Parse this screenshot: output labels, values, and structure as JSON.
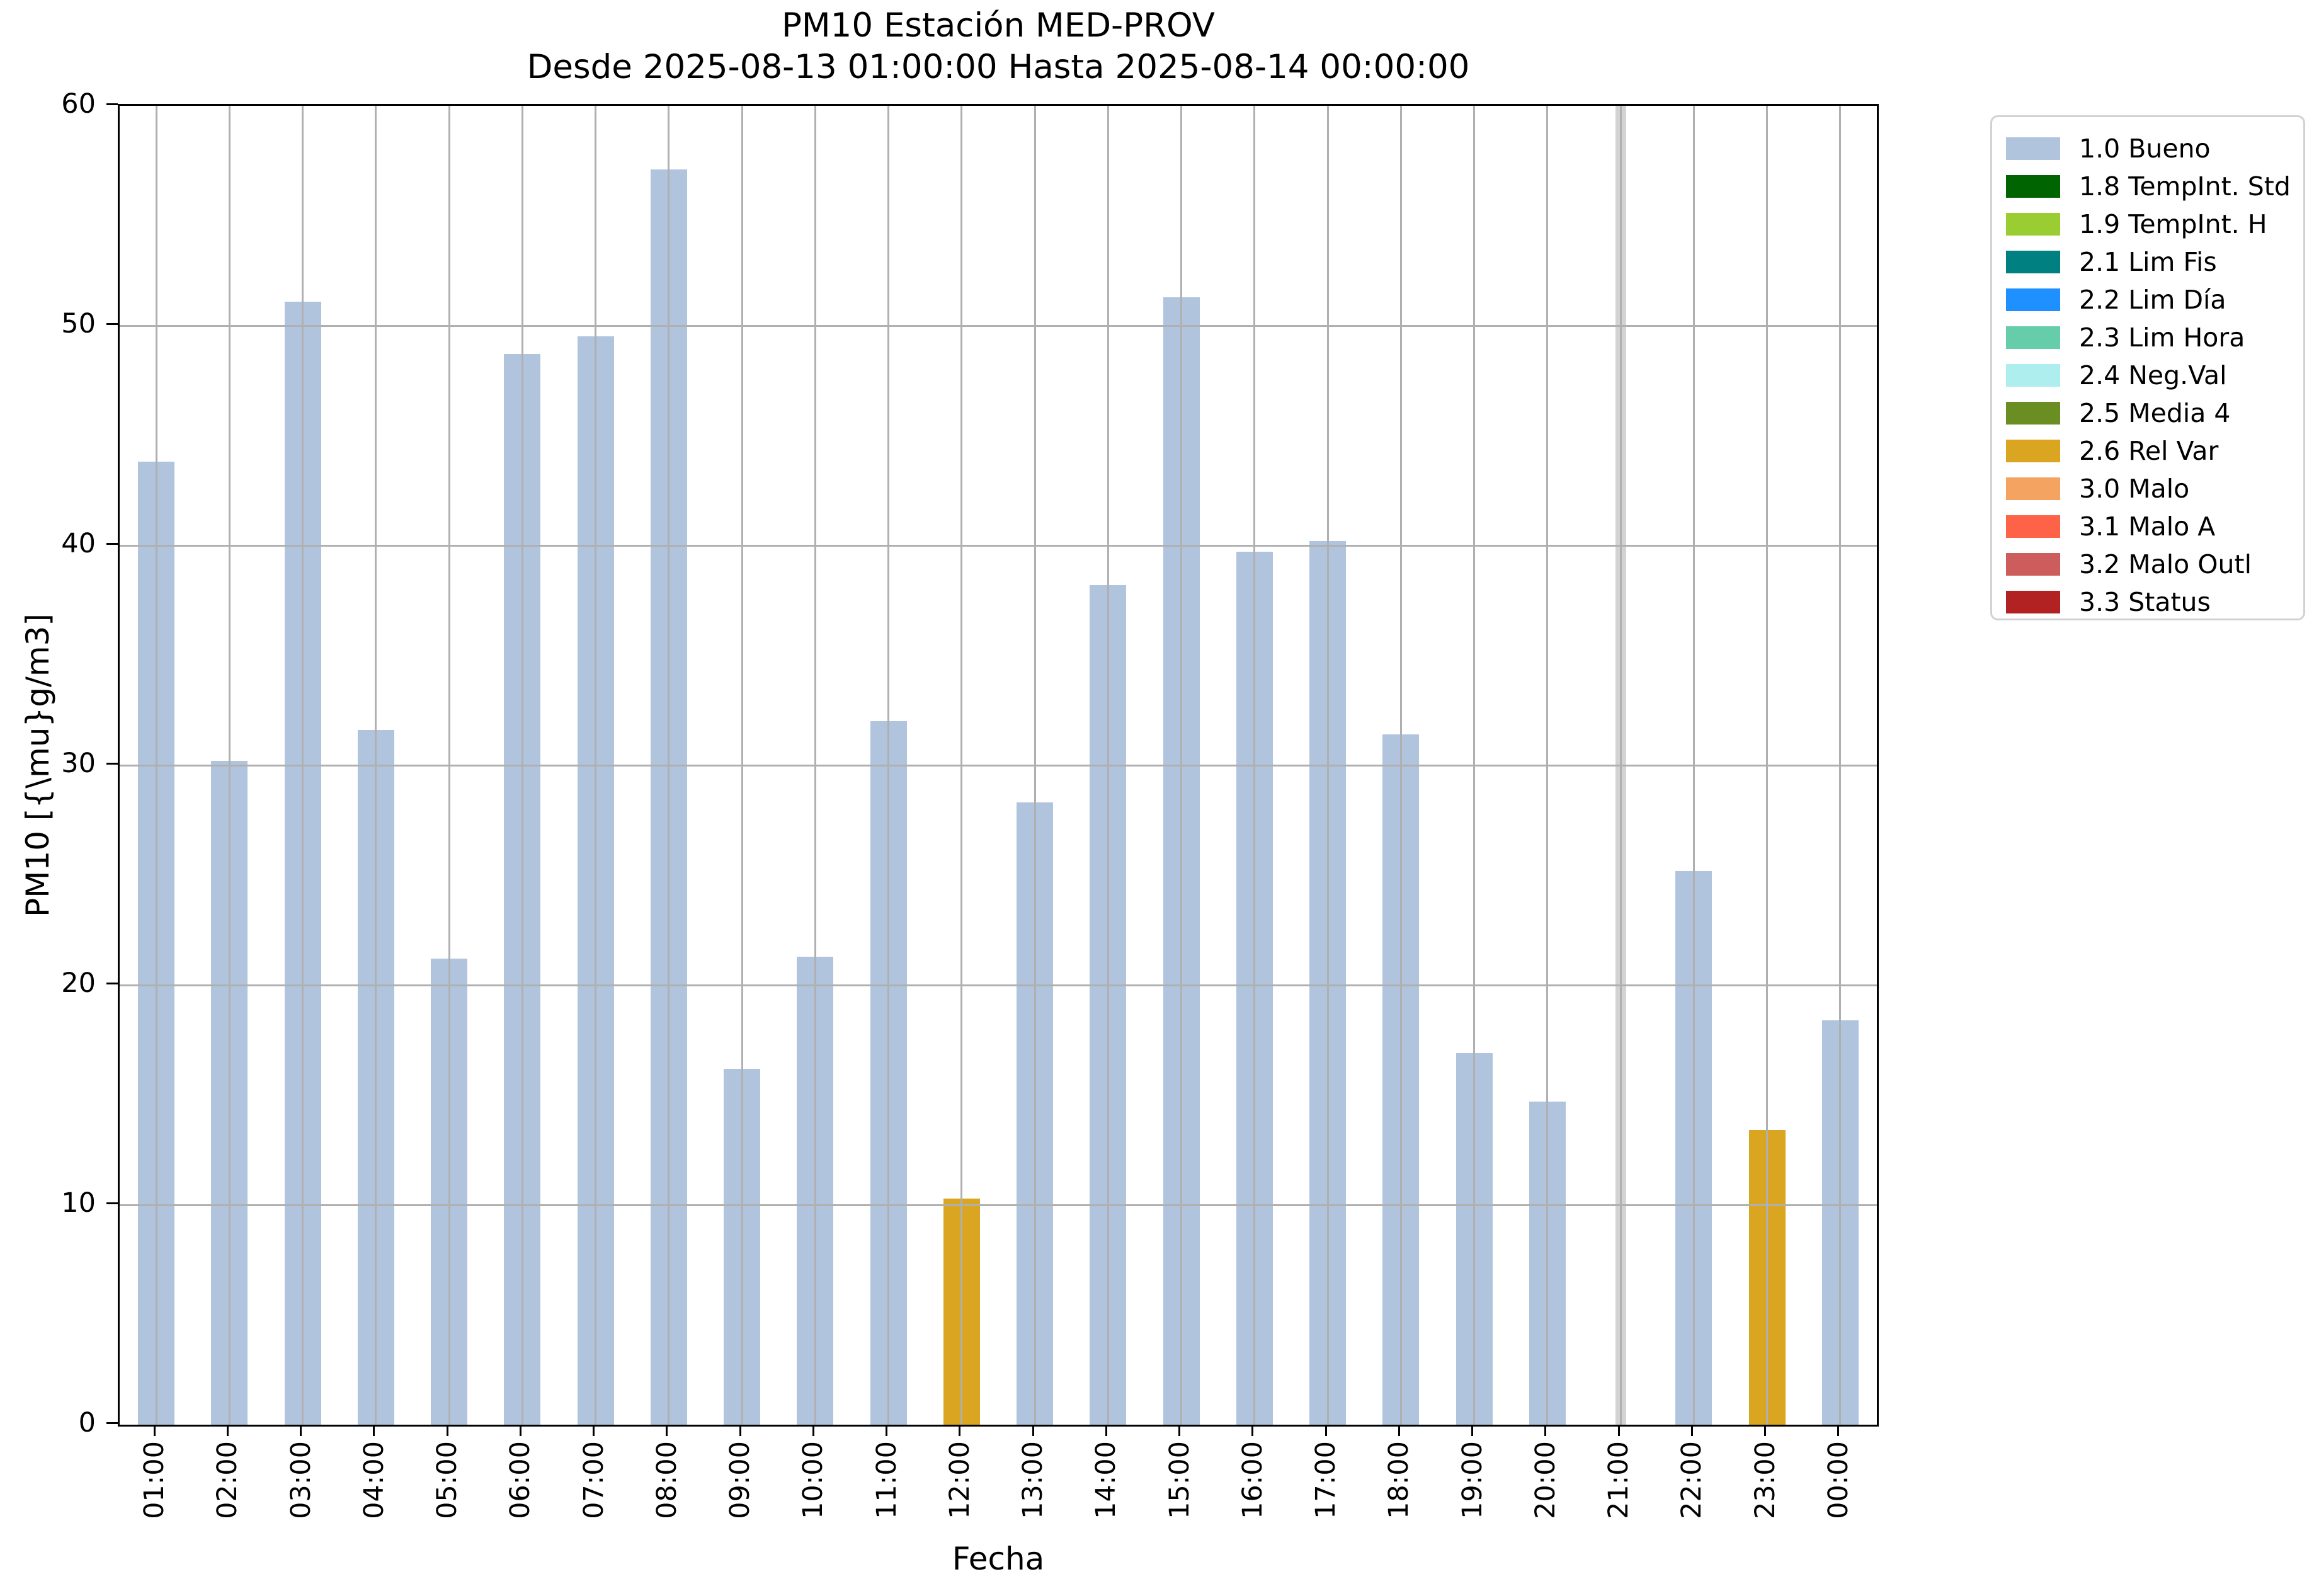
{
  "chart_data": {
    "type": "bar",
    "title": "PM10 Estación MED-PROV",
    "subtitle": "Desde 2025-08-13 01:00:00 Hasta 2025-08-14 00:00:00",
    "xlabel": "Fecha",
    "ylabel": "PM10 [{\\mu}g/m3]",
    "ylim": [
      0,
      60
    ],
    "yticks": [
      0,
      10,
      20,
      30,
      40,
      50,
      60
    ],
    "grid": true,
    "legend_position": "outside upper right",
    "categories": [
      "01:00",
      "02:00",
      "03:00",
      "04:00",
      "05:00",
      "06:00",
      "07:00",
      "08:00",
      "09:00",
      "10:00",
      "11:00",
      "12:00",
      "13:00",
      "14:00",
      "15:00",
      "16:00",
      "17:00",
      "18:00",
      "19:00",
      "20:00",
      "21:00",
      "22:00",
      "23:00",
      "00:00"
    ],
    "bars": [
      {
        "label": "01:00",
        "value": 43.8,
        "status": "1.0 Bueno"
      },
      {
        "label": "02:00",
        "value": 30.2,
        "status": "1.0 Bueno"
      },
      {
        "label": "03:00",
        "value": 51.1,
        "status": "1.0 Bueno"
      },
      {
        "label": "04:00",
        "value": 31.6,
        "status": "1.0 Bueno"
      },
      {
        "label": "05:00",
        "value": 21.2,
        "status": "1.0 Bueno"
      },
      {
        "label": "06:00",
        "value": 48.7,
        "status": "1.0 Bueno"
      },
      {
        "label": "07:00",
        "value": 49.5,
        "status": "1.0 Bueno"
      },
      {
        "label": "08:00",
        "value": 57.1,
        "status": "1.0 Bueno"
      },
      {
        "label": "09:00",
        "value": 16.2,
        "status": "1.0 Bueno"
      },
      {
        "label": "10:00",
        "value": 21.3,
        "status": "1.0 Bueno"
      },
      {
        "label": "11:00",
        "value": 32.0,
        "status": "1.0 Bueno"
      },
      {
        "label": "12:00",
        "value": 10.3,
        "status": "2.6 Rel Var"
      },
      {
        "label": "13:00",
        "value": 28.3,
        "status": "1.0 Bueno"
      },
      {
        "label": "14:00",
        "value": 38.2,
        "status": "1.0 Bueno"
      },
      {
        "label": "15:00",
        "value": 51.3,
        "status": "1.0 Bueno"
      },
      {
        "label": "16:00",
        "value": 39.7,
        "status": "1.0 Bueno"
      },
      {
        "label": "17:00",
        "value": 40.2,
        "status": "1.0 Bueno"
      },
      {
        "label": "18:00",
        "value": 31.4,
        "status": "1.0 Bueno"
      },
      {
        "label": "19:00",
        "value": 16.9,
        "status": "1.0 Bueno"
      },
      {
        "label": "20:00",
        "value": 14.7,
        "status": "1.0 Bueno"
      },
      {
        "label": "21:00",
        "value": null,
        "status": "no data"
      },
      {
        "label": "22:00",
        "value": 25.2,
        "status": "1.0 Bueno"
      },
      {
        "label": "23:00",
        "value": 13.4,
        "status": "2.6 Rel Var"
      },
      {
        "label": "00:00",
        "value": 18.4,
        "status": "1.0 Bueno"
      }
    ],
    "legend": [
      {
        "label": "1.0 Bueno",
        "color": "#b0c4de"
      },
      {
        "label": "1.8 TempInt. Std",
        "color": "#006400"
      },
      {
        "label": "1.9 TempInt. H",
        "color": "#9acd32"
      },
      {
        "label": "2.1 Lim Fis",
        "color": "#008080"
      },
      {
        "label": "2.2 Lim Día",
        "color": "#1e90ff"
      },
      {
        "label": "2.3 Lim Hora",
        "color": "#66cdaa"
      },
      {
        "label": "2.4 Neg.Val",
        "color": "#afeeee"
      },
      {
        "label": "2.5 Media 4",
        "color": "#6b8e23"
      },
      {
        "label": "2.6 Rel Var",
        "color": "#daa520"
      },
      {
        "label": "3.0 Malo",
        "color": "#f4a460"
      },
      {
        "label": "3.1 Malo A",
        "color": "#ff6347"
      },
      {
        "label": "3.2 Malo Outl",
        "color": "#cd5c5c"
      },
      {
        "label": "3.3 Status",
        "color": "#b22222"
      }
    ],
    "colors": {
      "grid": "#b0b0b0",
      "no_data": "#d3d3d3",
      "axis": "#000000",
      "background": "#ffffff"
    }
  }
}
